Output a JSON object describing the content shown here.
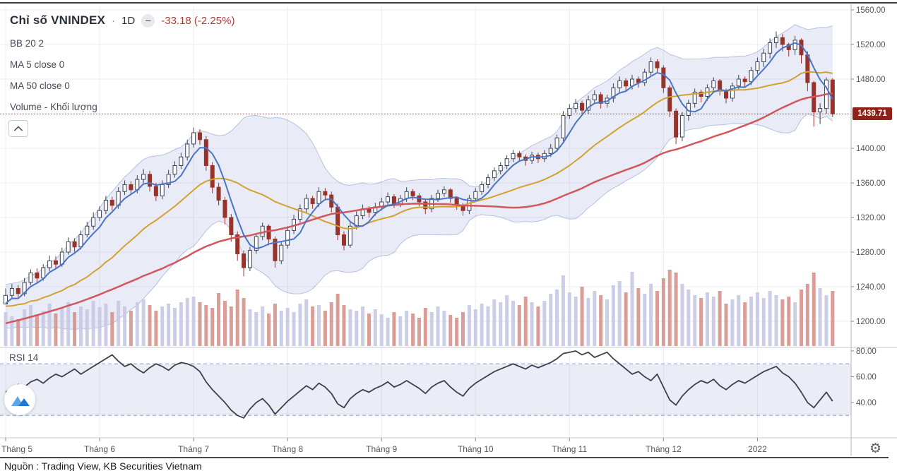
{
  "header": {
    "symbol_title": "Chỉ số VNINDEX",
    "separator": "·",
    "interval": "1D",
    "minus_icon": "−",
    "change_text": "-33.18 (-2.25%)"
  },
  "legend": {
    "bb": "BB 20 2",
    "ma5": "MA 5 close 0",
    "ma50": "MA 50 close 0",
    "volume": "Volume - Khối lượng",
    "rsi": "RSI 14"
  },
  "icons": {
    "gear": "⚙"
  },
  "footer": {
    "source": "Nguồn : Trading View, KB Securities Vietnam"
  },
  "colors": {
    "up_candle": "#ffffff",
    "up_border": "#3e4452",
    "down_candle": "#96342c",
    "ma5": "#4a74c8",
    "bb_basis": "#d4a12f",
    "ma50": "#d2565c",
    "bb_fill": "rgba(120,135,200,0.16)",
    "bb_edge": "rgba(108,130,196,0.45)",
    "vol_up": "#c6c9e6",
    "vol_down": "#d5938c",
    "rsi_line": "#3f3f4c",
    "rsi_band_fill": "rgba(125,140,200,0.16)",
    "rsi_band_edge": "#8cb0d9",
    "price_line": "#c0392b",
    "price_label_bg": "#8e2218",
    "grid": "#ececf0",
    "axis_line": "#b7b7bd",
    "separator": "#c9c9cf",
    "axis_text": "#53555c"
  },
  "chart_data": {
    "type": "candlestick",
    "symbol": "VNINDEX",
    "interval": "1D",
    "title": "Chỉ số VNINDEX 1D",
    "last_price": 1439.71,
    "last_price_label": "1439.71",
    "change": -33.18,
    "change_pct": -2.25,
    "ylim": [
      1185,
      1565
    ],
    "price_axis_ticks": [
      1560,
      1520,
      1480,
      1400,
      1360,
      1320,
      1280,
      1240,
      1200
    ],
    "grid_levels": [
      1560,
      1520,
      1480,
      1440,
      1400,
      1360,
      1320,
      1280,
      1240,
      1200
    ],
    "month_ticks": {
      "indices": [
        0,
        15,
        30,
        45,
        60,
        75,
        90,
        105,
        120
      ],
      "labels": [
        "Tháng 5",
        "Tháng 6",
        "Tháng 7",
        "Tháng 8",
        "Tháng 9",
        "Tháng 10",
        "Tháng 11",
        "Tháng 12",
        "2022"
      ]
    },
    "indicators": {
      "bb": {
        "period": 20,
        "stdev": 2
      },
      "ma_fast": {
        "period": 5
      },
      "ma_slow": {
        "period": 50
      }
    },
    "history_closes": [
      1140,
      1148,
      1144,
      1152,
      1156,
      1150,
      1160,
      1155,
      1164,
      1170,
      1166,
      1175,
      1180,
      1174,
      1184,
      1190,
      1185,
      1194,
      1200,
      1196,
      1204,
      1212,
      1200,
      1222,
      1194,
      1220,
      1192,
      1224,
      1196,
      1228,
      1198,
      1230,
      1202,
      1226,
      1196,
      1231,
      1200,
      1224,
      1202,
      1228,
      1206,
      1232,
      1204,
      1230,
      1208,
      1226,
      1210,
      1232,
      1212,
      1220
    ],
    "candles": [
      [
        1238,
        1224,
        1230
      ],
      [
        1243,
        1227,
        1238
      ],
      [
        1242,
        1228,
        1232
      ],
      [
        1250,
        1229,
        1245
      ],
      [
        1260,
        1242,
        1256
      ],
      [
        1261,
        1245,
        1250
      ],
      [
        1266,
        1247,
        1262
      ],
      [
        1276,
        1258,
        1270
      ],
      [
        1275,
        1260,
        1266
      ],
      [
        1285,
        1263,
        1280
      ],
      [
        1297,
        1277,
        1292
      ],
      [
        1296,
        1280,
        1286
      ],
      [
        1305,
        1283,
        1300
      ],
      [
        1315,
        1297,
        1310
      ],
      [
        1326,
        1306,
        1320
      ],
      [
        1333,
        1316,
        1328
      ],
      [
        1345,
        1324,
        1340
      ],
      [
        1344,
        1328,
        1334
      ],
      [
        1355,
        1330,
        1350
      ],
      [
        1363,
        1346,
        1358
      ],
      [
        1362,
        1347,
        1352
      ],
      [
        1369,
        1348,
        1364
      ],
      [
        1376,
        1360,
        1370
      ],
      [
        1374,
        1350,
        1356
      ],
      [
        1360,
        1339,
        1345
      ],
      [
        1363,
        1341,
        1358
      ],
      [
        1375,
        1354,
        1370
      ],
      [
        1385,
        1366,
        1380
      ],
      [
        1395,
        1376,
        1390
      ],
      [
        1410,
        1386,
        1405
      ],
      [
        1424,
        1401,
        1418
      ],
      [
        1422,
        1404,
        1410
      ],
      [
        1414,
        1374,
        1380
      ],
      [
        1384,
        1348,
        1355
      ],
      [
        1360,
        1334,
        1340
      ],
      [
        1344,
        1312,
        1320
      ],
      [
        1324,
        1292,
        1300
      ],
      [
        1304,
        1270,
        1278
      ],
      [
        1282,
        1252,
        1262
      ],
      [
        1286,
        1258,
        1282
      ],
      [
        1302,
        1278,
        1298
      ],
      [
        1314,
        1294,
        1310
      ],
      [
        1312,
        1288,
        1295
      ],
      [
        1298,
        1262,
        1270
      ],
      [
        1292,
        1266,
        1288
      ],
      [
        1310,
        1284,
        1305
      ],
      [
        1323,
        1301,
        1318
      ],
      [
        1335,
        1314,
        1330
      ],
      [
        1347,
        1326,
        1342
      ],
      [
        1345,
        1330,
        1336
      ],
      [
        1355,
        1332,
        1350
      ],
      [
        1354,
        1340,
        1346
      ],
      [
        1350,
        1326,
        1332
      ],
      [
        1336,
        1294,
        1300
      ],
      [
        1304,
        1282,
        1288
      ],
      [
        1314,
        1285,
        1310
      ],
      [
        1327,
        1306,
        1322
      ],
      [
        1335,
        1318,
        1330
      ],
      [
        1333,
        1320,
        1326
      ],
      [
        1337,
        1322,
        1332
      ],
      [
        1343,
        1328,
        1338
      ],
      [
        1349,
        1334,
        1344
      ],
      [
        1347,
        1331,
        1336
      ],
      [
        1346,
        1332,
        1342
      ],
      [
        1355,
        1338,
        1350
      ],
      [
        1353,
        1340,
        1345
      ],
      [
        1348,
        1333,
        1338
      ],
      [
        1341,
        1324,
        1330
      ],
      [
        1346,
        1326,
        1342
      ],
      [
        1352,
        1338,
        1348
      ],
      [
        1356,
        1344,
        1352
      ],
      [
        1354,
        1337,
        1342
      ],
      [
        1344,
        1329,
        1334
      ],
      [
        1337,
        1322,
        1328
      ],
      [
        1346,
        1324,
        1342
      ],
      [
        1354,
        1338,
        1350
      ],
      [
        1362,
        1346,
        1358
      ],
      [
        1370,
        1354,
        1366
      ],
      [
        1378,
        1362,
        1374
      ],
      [
        1384,
        1370,
        1380
      ],
      [
        1392,
        1376,
        1388
      ],
      [
        1398,
        1384,
        1394
      ],
      [
        1397,
        1385,
        1390
      ],
      [
        1393,
        1380,
        1386
      ],
      [
        1396,
        1382,
        1392
      ],
      [
        1395,
        1383,
        1388
      ],
      [
        1398,
        1384,
        1394
      ],
      [
        1405,
        1390,
        1400
      ],
      [
        1416,
        1396,
        1412
      ],
      [
        1443,
        1408,
        1438
      ],
      [
        1451,
        1434,
        1446
      ],
      [
        1457,
        1441,
        1452
      ],
      [
        1455,
        1438,
        1444
      ],
      [
        1461,
        1440,
        1456
      ],
      [
        1467,
        1451,
        1462
      ],
      [
        1465,
        1446,
        1452
      ],
      [
        1462,
        1447,
        1458
      ],
      [
        1475,
        1453,
        1470
      ],
      [
        1483,
        1465,
        1478
      ],
      [
        1481,
        1466,
        1472
      ],
      [
        1485,
        1468,
        1480
      ],
      [
        1483,
        1470,
        1476
      ],
      [
        1492,
        1472,
        1488
      ],
      [
        1505,
        1484,
        1500
      ],
      [
        1503,
        1487,
        1493
      ],
      [
        1496,
        1464,
        1470
      ],
      [
        1473,
        1436,
        1443
      ],
      [
        1446,
        1405,
        1413
      ],
      [
        1442,
        1408,
        1438
      ],
      [
        1456,
        1432,
        1452
      ],
      [
        1469,
        1447,
        1465
      ],
      [
        1468,
        1453,
        1460
      ],
      [
        1474,
        1455,
        1470
      ],
      [
        1482,
        1465,
        1478
      ],
      [
        1480,
        1461,
        1466
      ],
      [
        1469,
        1452,
        1458
      ],
      [
        1476,
        1454,
        1472
      ],
      [
        1485,
        1468,
        1480
      ],
      [
        1483,
        1470,
        1477
      ],
      [
        1494,
        1473,
        1490
      ],
      [
        1505,
        1486,
        1500
      ],
      [
        1515,
        1494,
        1510
      ],
      [
        1527,
        1504,
        1522
      ],
      [
        1535,
        1516,
        1528
      ],
      [
        1532,
        1512,
        1520
      ],
      [
        1522,
        1506,
        1514
      ],
      [
        1530,
        1508,
        1525
      ],
      [
        1527,
        1498,
        1508
      ],
      [
        1512,
        1466,
        1476
      ],
      [
        1478,
        1425,
        1442
      ],
      [
        1452,
        1428,
        1446
      ],
      [
        1482,
        1440,
        1479
      ],
      [
        1481,
        1436,
        1439.71
      ]
    ],
    "volumes": [
      48,
      42,
      38,
      52,
      58,
      44,
      50,
      60,
      46,
      54,
      62,
      48,
      56,
      52,
      64,
      55,
      60,
      48,
      64,
      56,
      50,
      62,
      66,
      58,
      50,
      56,
      60,
      54,
      62,
      68,
      70,
      62,
      58,
      54,
      75,
      64,
      56,
      80,
      68,
      52,
      48,
      56,
      46,
      60,
      50,
      54,
      48,
      60,
      66,
      56,
      58,
      50,
      62,
      74,
      58,
      52,
      50,
      56,
      46,
      52,
      45,
      40,
      48,
      42,
      50,
      46,
      40,
      54,
      48,
      56,
      50,
      44,
      40,
      48,
      58,
      52,
      60,
      56,
      66,
      62,
      72,
      64,
      58,
      70,
      62,
      56,
      64,
      74,
      80,
      100,
      76,
      70,
      84,
      68,
      78,
      72,
      66,
      86,
      92,
      76,
      105,
      82,
      74,
      88,
      78,
      96,
      108,
      104,
      88,
      80,
      72,
      68,
      76,
      70,
      78,
      60,
      66,
      72,
      62,
      70,
      76,
      68,
      78,
      72,
      66,
      70,
      62,
      80,
      88,
      104,
      82,
      72,
      78
    ],
    "rsi": {
      "period": 14,
      "upper_band": 70,
      "lower_band": 30,
      "axis_ticks": [
        80,
        60,
        40
      ],
      "values": [
        48,
        51,
        54,
        52,
        56,
        58,
        55,
        59,
        62,
        60,
        63,
        66,
        62,
        65,
        68,
        71,
        74,
        77,
        72,
        68,
        70,
        66,
        63,
        67,
        70,
        68,
        65,
        69,
        71,
        70,
        68,
        64,
        56,
        50,
        45,
        40,
        34,
        30,
        28,
        35,
        40,
        43,
        38,
        31,
        36,
        41,
        45,
        49,
        53,
        50,
        55,
        52,
        47,
        39,
        36,
        43,
        47,
        50,
        48,
        51,
        53,
        56,
        52,
        54,
        57,
        54,
        51,
        47,
        52,
        55,
        57,
        52,
        48,
        45,
        51,
        55,
        58,
        61,
        64,
        66,
        68,
        70,
        68,
        66,
        69,
        67,
        69,
        71,
        74,
        78,
        79,
        80,
        77,
        79,
        75,
        77,
        79,
        74,
        70,
        66,
        62,
        64,
        60,
        57,
        62,
        52,
        42,
        38,
        45,
        50,
        54,
        57,
        55,
        58,
        53,
        50,
        54,
        57,
        55,
        58,
        61,
        64,
        66,
        68,
        63,
        60,
        55,
        48,
        40,
        36,
        42,
        48,
        41
      ]
    }
  }
}
